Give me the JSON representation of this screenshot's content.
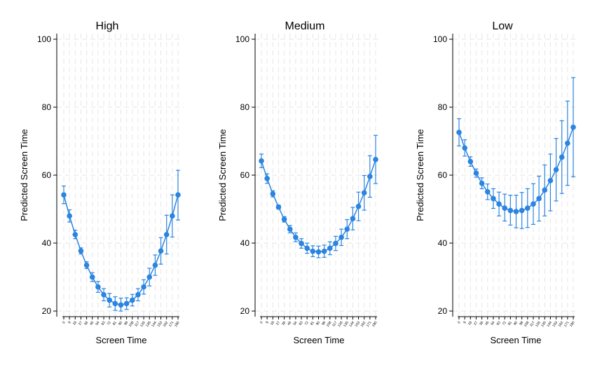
{
  "chart_data": [
    {
      "type": "line",
      "title": "High",
      "xlabel": "Screen Time",
      "ylabel": "Predicted Screen Time",
      "ylim": [
        20,
        100
      ],
      "yticks": [
        20,
        40,
        60,
        80,
        100
      ],
      "x": [
        0,
        9,
        18,
        27,
        36,
        45,
        54,
        63,
        72,
        81,
        90,
        99,
        108,
        117,
        126,
        135,
        144,
        153,
        162,
        171,
        180
      ],
      "xtick_labels": [
        "0",
        "9",
        "18",
        "27",
        "36",
        "45",
        "54",
        "63",
        "72",
        "81",
        "90",
        "99",
        "108",
        "117",
        "126",
        "135",
        "144",
        "153",
        "162",
        "171",
        "180"
      ],
      "series": [
        {
          "values": [
            54.2,
            48.0,
            42.5,
            37.7,
            33.5,
            30.0,
            27.1,
            24.8,
            23.2,
            22.2,
            21.8,
            22.2,
            23.2,
            24.8,
            27.1,
            30.0,
            33.5,
            37.7,
            42.5,
            48.0,
            54.2
          ],
          "lower": [
            51.6,
            46.2,
            41.3,
            36.8,
            32.5,
            28.7,
            25.5,
            23.0,
            21.2,
            20.2,
            20.0,
            20.5,
            21.5,
            23.0,
            25.0,
            27.4,
            30.5,
            33.8,
            36.8,
            41.8,
            46.8
          ],
          "upper": [
            56.8,
            49.8,
            43.8,
            38.6,
            34.5,
            31.3,
            28.7,
            26.6,
            25.2,
            24.2,
            23.8,
            23.9,
            24.9,
            26.6,
            29.2,
            32.6,
            36.5,
            41.6,
            48.2,
            54.2,
            61.4
          ]
        }
      ],
      "color": "#2a84e0",
      "grid": true
    },
    {
      "type": "line",
      "title": "Medium",
      "xlabel": "Screen Time",
      "ylabel": "Predicted Screen Time",
      "ylim": [
        20,
        100
      ],
      "yticks": [
        20,
        40,
        60,
        80,
        100
      ],
      "x": [
        0,
        9,
        18,
        27,
        36,
        45,
        54,
        63,
        72,
        81,
        90,
        99,
        108,
        117,
        126,
        135,
        144,
        153,
        162,
        171,
        180
      ],
      "xtick_labels": [
        "0",
        "9",
        "18",
        "27",
        "36",
        "45",
        "54",
        "63",
        "72",
        "81",
        "90",
        "99",
        "108",
        "117",
        "126",
        "135",
        "144",
        "153",
        "162",
        "171",
        "180"
      ],
      "series": [
        {
          "values": [
            64.2,
            59.0,
            54.5,
            50.6,
            47.0,
            44.1,
            41.7,
            39.9,
            38.5,
            37.6,
            37.4,
            37.6,
            38.5,
            39.9,
            41.7,
            44.1,
            47.2,
            50.8,
            54.8,
            59.6,
            64.6
          ],
          "lower": [
            62.2,
            57.6,
            53.6,
            50.0,
            46.2,
            43.0,
            40.4,
            38.5,
            37.0,
            36.0,
            35.7,
            35.8,
            36.6,
            37.8,
            39.3,
            41.3,
            43.9,
            46.6,
            49.7,
            53.5,
            57.5
          ],
          "upper": [
            66.2,
            60.4,
            55.4,
            51.2,
            47.8,
            45.2,
            43.0,
            41.3,
            40.0,
            39.2,
            39.1,
            39.4,
            40.4,
            42.0,
            44.1,
            46.9,
            50.5,
            55.0,
            59.9,
            65.7,
            71.7
          ]
        }
      ],
      "color": "#2a84e0",
      "grid": true
    },
    {
      "type": "line",
      "title": "Low",
      "xlabel": "Screen Time",
      "ylabel": "Predicted Screen Time",
      "ylim": [
        20,
        100
      ],
      "yticks": [
        20,
        40,
        60,
        80,
        100
      ],
      "x": [
        0,
        9,
        18,
        27,
        36,
        45,
        54,
        63,
        72,
        81,
        90,
        99,
        108,
        117,
        126,
        135,
        144,
        153,
        162,
        171,
        180
      ],
      "xtick_labels": [
        "0",
        "9",
        "18",
        "27",
        "36",
        "45",
        "54",
        "63",
        "72",
        "81",
        "90",
        "99",
        "108",
        "117",
        "126",
        "135",
        "144",
        "153",
        "162",
        "171",
        "180"
      ],
      "series": [
        {
          "values": [
            72.6,
            68.0,
            64.0,
            60.6,
            57.6,
            55.1,
            53.1,
            51.5,
            50.3,
            49.6,
            49.3,
            49.6,
            50.3,
            51.5,
            53.1,
            55.6,
            58.4,
            61.6,
            65.3,
            69.4,
            74.1
          ],
          "lower": [
            68.6,
            65.6,
            62.6,
            59.4,
            56.0,
            52.8,
            50.2,
            48.0,
            46.5,
            45.3,
            44.5,
            44.3,
            44.6,
            45.5,
            46.5,
            48.0,
            49.5,
            52.4,
            54.6,
            57.0,
            59.5
          ],
          "upper": [
            76.6,
            70.4,
            65.4,
            61.8,
            59.2,
            57.4,
            56.0,
            55.0,
            54.4,
            54.1,
            54.1,
            54.9,
            56.0,
            57.5,
            59.7,
            63.0,
            66.2,
            70.8,
            76.0,
            81.8,
            88.7
          ]
        }
      ],
      "color": "#2a84e0",
      "grid": true
    }
  ]
}
